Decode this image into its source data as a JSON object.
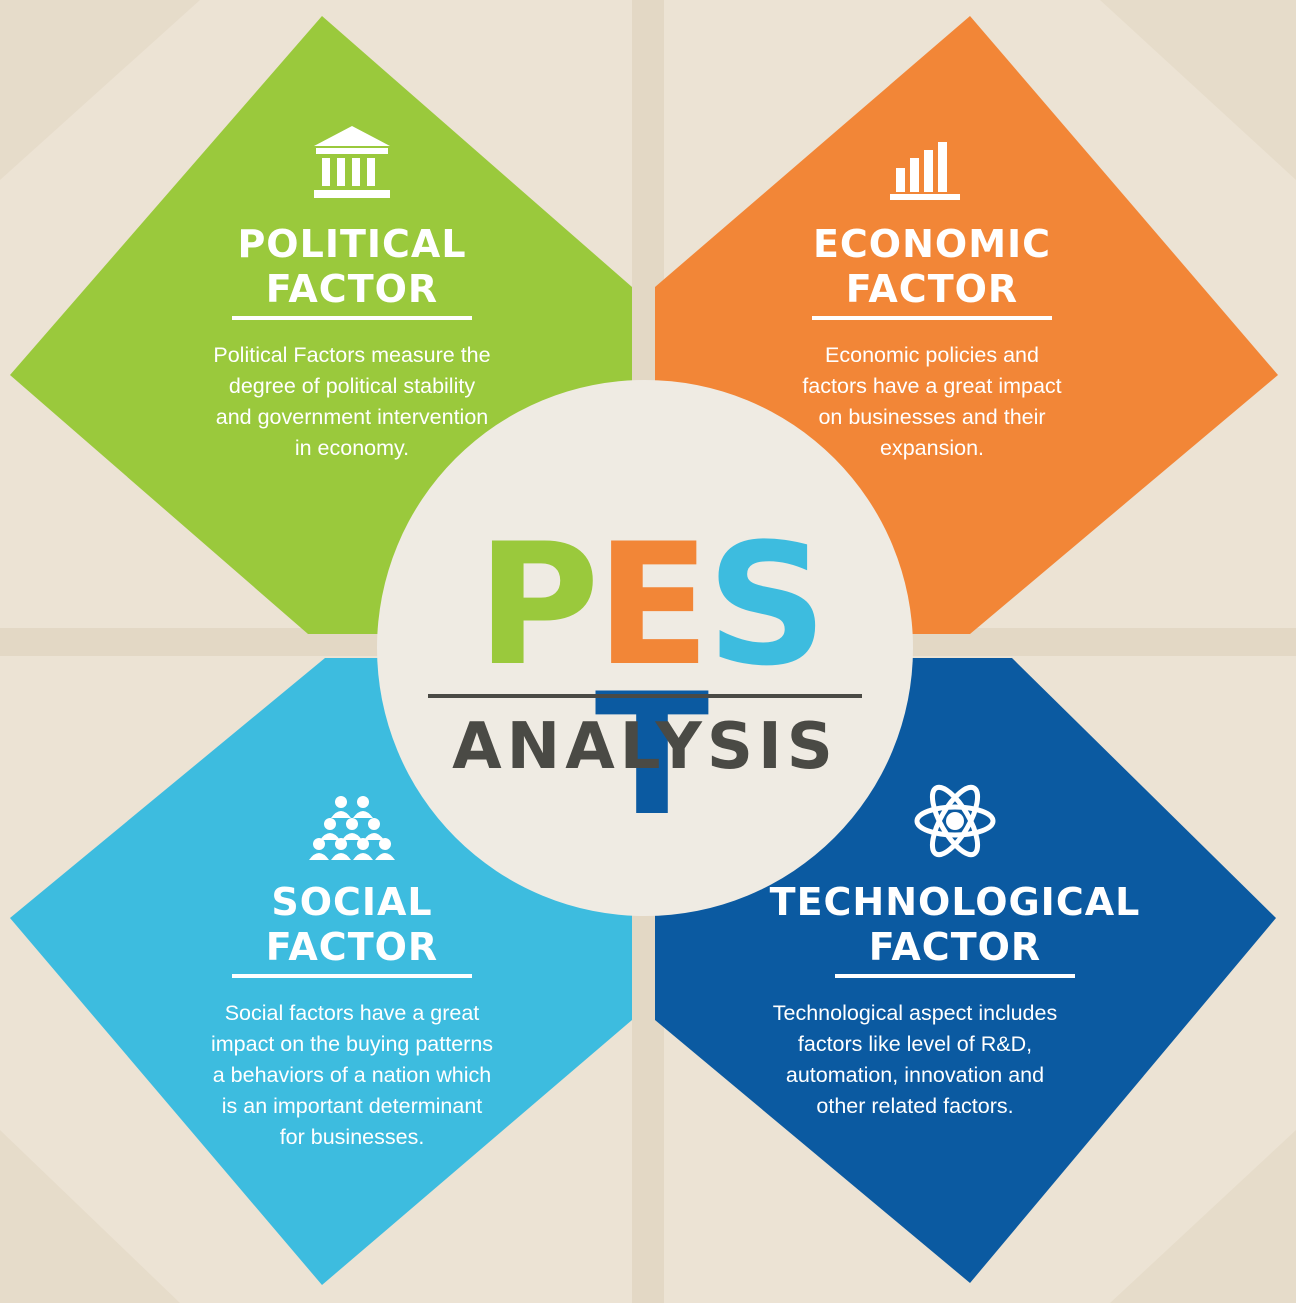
{
  "colors": {
    "background": "#ece3d4",
    "political": "#9ac93c",
    "economic": "#f28637",
    "social": "#3dbcdf",
    "technological": "#0b5aa1",
    "center_circle": "#efebe3",
    "analysis_text": "#4a4a45"
  },
  "center": {
    "letters": [
      "P",
      "E",
      "S",
      "T"
    ],
    "subtitle": "ANALYSIS"
  },
  "factors": [
    {
      "key": "political",
      "icon": "government-building-icon",
      "title_line1": "POLITICAL",
      "title_line2": "FACTOR",
      "description": [
        "Political Factors measure the",
        "degree of political stability",
        "and government intervention",
        "in economy."
      ]
    },
    {
      "key": "economic",
      "icon": "bar-chart-icon",
      "title_line1": "ECONOMIC",
      "title_line2": "FACTOR",
      "description": [
        "Economic policies and",
        "factors have a great impact",
        "on businesses and their",
        "expansion."
      ]
    },
    {
      "key": "social",
      "icon": "people-group-icon",
      "title_line1": "SOCIAL",
      "title_line2": "FACTOR",
      "description": [
        "Social factors have a great",
        "impact on the buying patterns",
        "a behaviors of a nation which",
        "is an important determinant",
        "for businesses."
      ]
    },
    {
      "key": "technological",
      "icon": "atom-icon",
      "title_line1": "TECHNOLOGICAL",
      "title_line2": "FACTOR",
      "description": [
        "Technological aspect includes",
        "factors like level of R&D,",
        "automation, innovation and",
        "other related factors."
      ]
    }
  ]
}
